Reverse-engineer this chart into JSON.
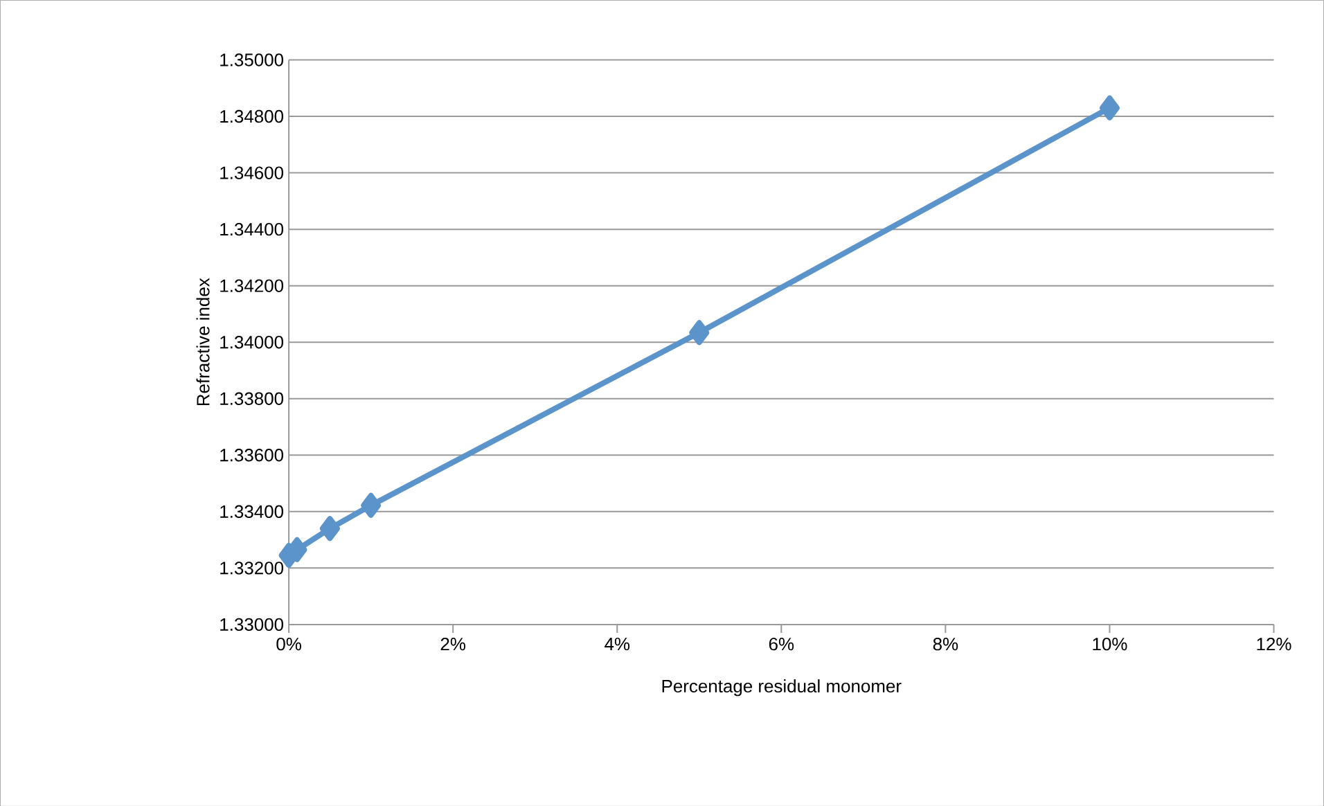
{
  "chart_data": {
    "type": "line",
    "xlabel": "Percentage residual monomer",
    "ylabel": "Refractive index",
    "x": [
      0,
      0.1,
      0.5,
      1,
      5,
      10
    ],
    "series": [
      {
        "color": "#5b93cb",
        "values": [
          1.33245,
          1.33265,
          1.3334,
          1.33422,
          1.34034,
          1.3483
        ]
      }
    ],
    "xlim": [
      0,
      12
    ],
    "xticks": [
      {
        "value": 0,
        "label": "0%"
      },
      {
        "value": 2,
        "label": "2%"
      },
      {
        "value": 4,
        "label": "4%"
      },
      {
        "value": 6,
        "label": "6%"
      },
      {
        "value": 8,
        "label": "8%"
      },
      {
        "value": 10,
        "label": "10%"
      },
      {
        "value": 12,
        "label": "12%"
      }
    ],
    "ylim": [
      1.33,
      1.35
    ],
    "yticks": [
      {
        "value": 1.33,
        "label": "1.33000"
      },
      {
        "value": 1.332,
        "label": "1.33200"
      },
      {
        "value": 1.334,
        "label": "1.33400"
      },
      {
        "value": 1.336,
        "label": "1.33600"
      },
      {
        "value": 1.338,
        "label": "1.33800"
      },
      {
        "value": 1.34,
        "label": "1.34000"
      },
      {
        "value": 1.342,
        "label": "1.34200"
      },
      {
        "value": 1.344,
        "label": "1.34400"
      },
      {
        "value": 1.346,
        "label": "1.34600"
      },
      {
        "value": 1.348,
        "label": "1.34800"
      },
      {
        "value": 1.35,
        "label": "1.35000"
      }
    ],
    "grid": "y",
    "marker": "diamond",
    "line_style": "solid"
  }
}
